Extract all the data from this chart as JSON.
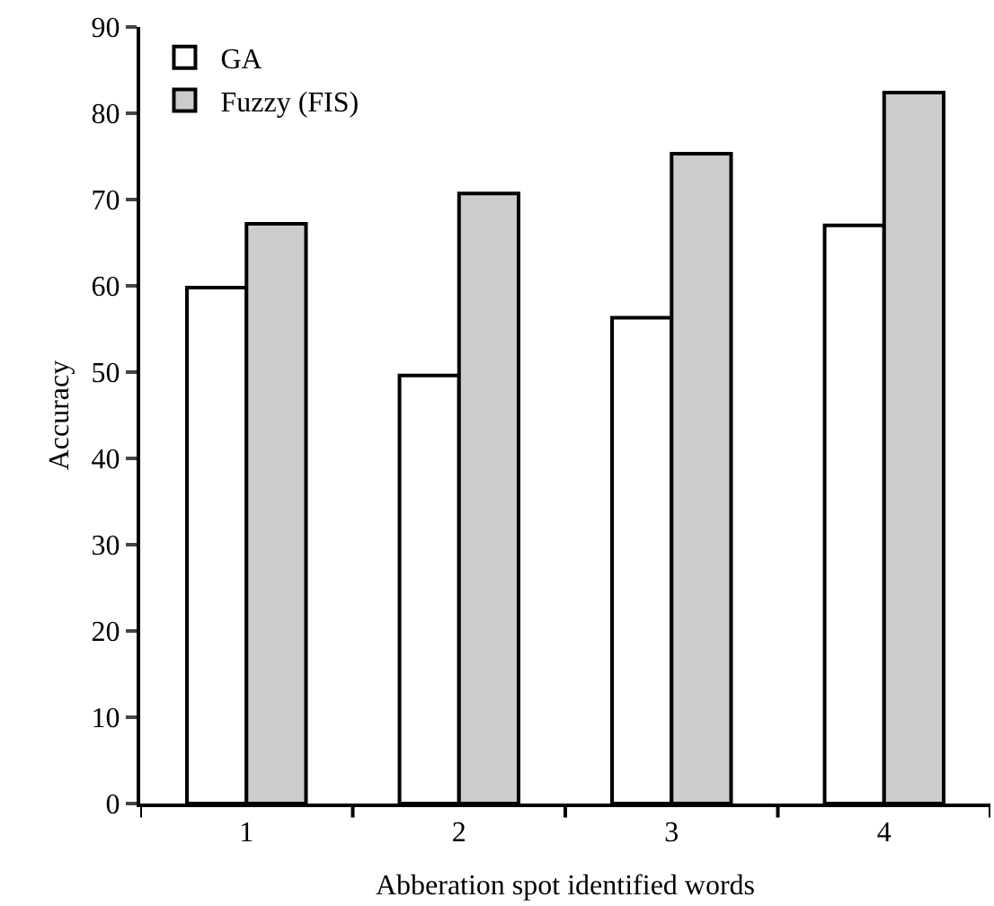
{
  "chart_data": {
    "type": "bar",
    "xlabel": "Abberation spot identified words",
    "ylabel": "Accuracy",
    "categories": [
      "1",
      "2",
      "3",
      "4"
    ],
    "series": [
      {
        "name": "GA",
        "color": "#ffffff",
        "values": [
          59.8,
          49.6,
          56.3,
          67.0
        ]
      },
      {
        "name": "Fuzzy (FIS)",
        "color": "#cccccc",
        "values": [
          67.2,
          70.7,
          75.3,
          82.4
        ]
      }
    ],
    "ylim": [
      0,
      90
    ],
    "yticks": [
      0,
      10,
      20,
      30,
      40,
      50,
      60,
      70,
      80,
      90
    ],
    "legend": "top left"
  }
}
